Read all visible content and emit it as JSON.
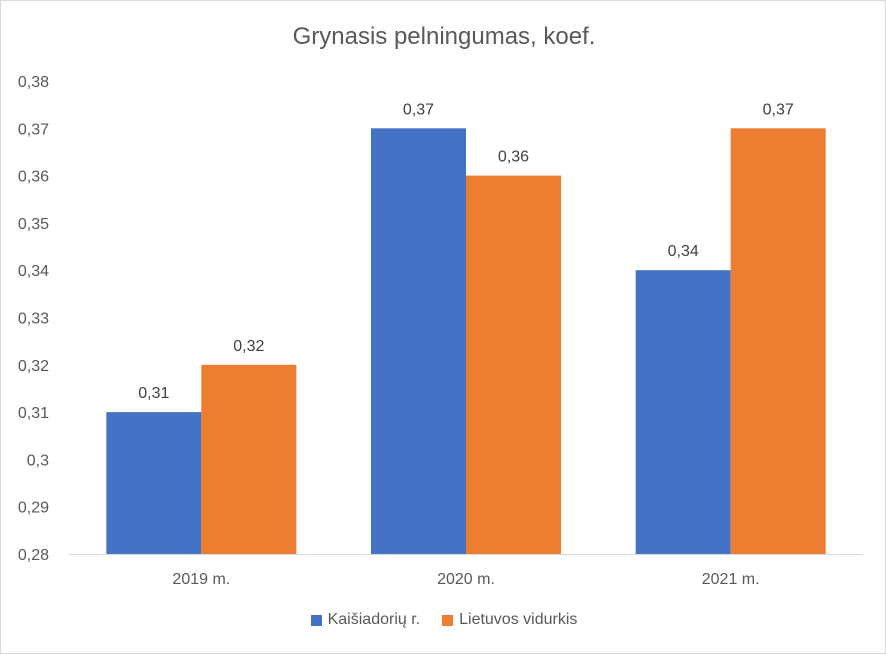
{
  "chart_data": {
    "type": "bar",
    "title": "Grynasis pelningumas, koef.",
    "categories": [
      "2019 m.",
      "2020 m.",
      "2021 m."
    ],
    "series": [
      {
        "name": "Kaišiadorių r.",
        "color": "#4472c4",
        "values": [
          0.31,
          0.37,
          0.34
        ],
        "labels": [
          "0,31",
          "0,37",
          "0,34"
        ]
      },
      {
        "name": "Lietuvos vidurkis",
        "color": "#ed7d31",
        "values": [
          0.32,
          0.36,
          0.37
        ],
        "labels": [
          "0,32",
          "0,36",
          "0,37"
        ]
      }
    ],
    "ylim": [
      0.28,
      0.38
    ],
    "yticks": [
      "0,28",
      "0,29",
      "0,3",
      "0,31",
      "0,32",
      "0,33",
      "0,34",
      "0,35",
      "0,36",
      "0,37",
      "0,38"
    ],
    "grid": false,
    "legend_position": "bottom"
  }
}
